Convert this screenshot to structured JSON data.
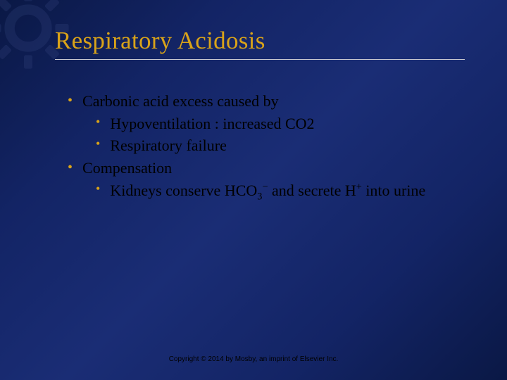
{
  "slide": {
    "title": "Respiratory Acidosis",
    "background_colors": [
      "#0a1845",
      "#132465",
      "#1a2d75"
    ],
    "title_color": "#d9a319",
    "bullet_color": "#d9a319",
    "text_color": "#000000",
    "underline_color": "#c8c8d0",
    "title_fontsize": 35,
    "body_fontsize": 22,
    "copyright_fontsize": 10,
    "bullets": [
      {
        "text": "Carbonic acid excess caused by",
        "sub": [
          {
            "text": "Hypoventilation : increased CO2"
          },
          {
            "text": "Respiratory failure"
          }
        ]
      },
      {
        "text": "Compensation",
        "sub": [
          {
            "html": "Kidneys conserve HCO<sub>3</sub><sup>−</sup> and secrete H<sup>+</sup> into urine"
          }
        ]
      }
    ],
    "copyright": "Copyright © 2014 by Mosby, an imprint of Elsevier Inc.",
    "gear_icon_color": "#3a4a85"
  }
}
